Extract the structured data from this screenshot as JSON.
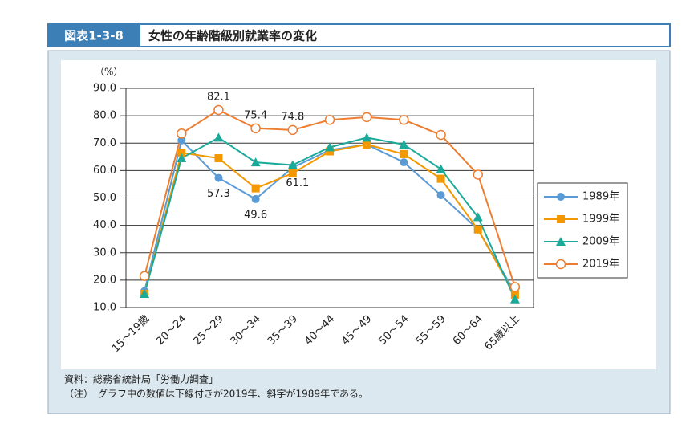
{
  "header": {
    "figure_number": "図表1-3-8",
    "title": "女性の年齢階級別就業率の変化"
  },
  "chart_data": {
    "type": "line",
    "y_unit": "（%）",
    "categories": [
      "15～19歳",
      "20～24",
      "25～29",
      "30～34",
      "35～39",
      "40～44",
      "45～49",
      "50～54",
      "55～59",
      "60～64",
      "65歳以上"
    ],
    "series": [
      {
        "name": "1989年",
        "color": "#5b9bd5",
        "marker": "circle",
        "values": [
          16.0,
          71.0,
          57.3,
          49.6,
          61.1,
          67.5,
          69.5,
          63.0,
          51.0,
          38.5,
          15.5
        ]
      },
      {
        "name": "1999年",
        "color": "#f39800",
        "marker": "square",
        "values": [
          15.0,
          66.5,
          64.5,
          53.5,
          59.0,
          67.0,
          69.5,
          66.0,
          57.0,
          38.5,
          14.6
        ]
      },
      {
        "name": "2009年",
        "color": "#1aaa9a",
        "marker": "triangle",
        "values": [
          15.0,
          64.5,
          72.0,
          63.0,
          62.0,
          68.5,
          72.0,
          69.5,
          60.5,
          43.0,
          13.0
        ]
      },
      {
        "name": "2019年",
        "color": "#ed7d31",
        "marker": "open-circle",
        "values": [
          21.5,
          73.5,
          82.1,
          75.4,
          74.8,
          78.5,
          79.5,
          78.5,
          73.0,
          58.5,
          17.5
        ]
      }
    ],
    "ylim": [
      10,
      90
    ],
    "yticks": [
      {
        "value": 10,
        "label": "10.0"
      },
      {
        "value": 20,
        "label": "20.0"
      },
      {
        "value": 30,
        "label": "30.0"
      },
      {
        "value": 40,
        "label": "40.0"
      },
      {
        "value": 50,
        "label": "50.0"
      },
      {
        "value": 60,
        "label": "60.0"
      },
      {
        "value": 70,
        "label": "70.0"
      },
      {
        "value": 80,
        "label": "80.0"
      },
      {
        "value": 90,
        "label": "90.0"
      }
    ],
    "grid": true,
    "legend": "right"
  },
  "footer": {
    "source": "資料：総務省統計局「労働力調査」",
    "note": "（注）　グラフ中の数値は下線付きが2019年、斜字が1989年である。"
  }
}
